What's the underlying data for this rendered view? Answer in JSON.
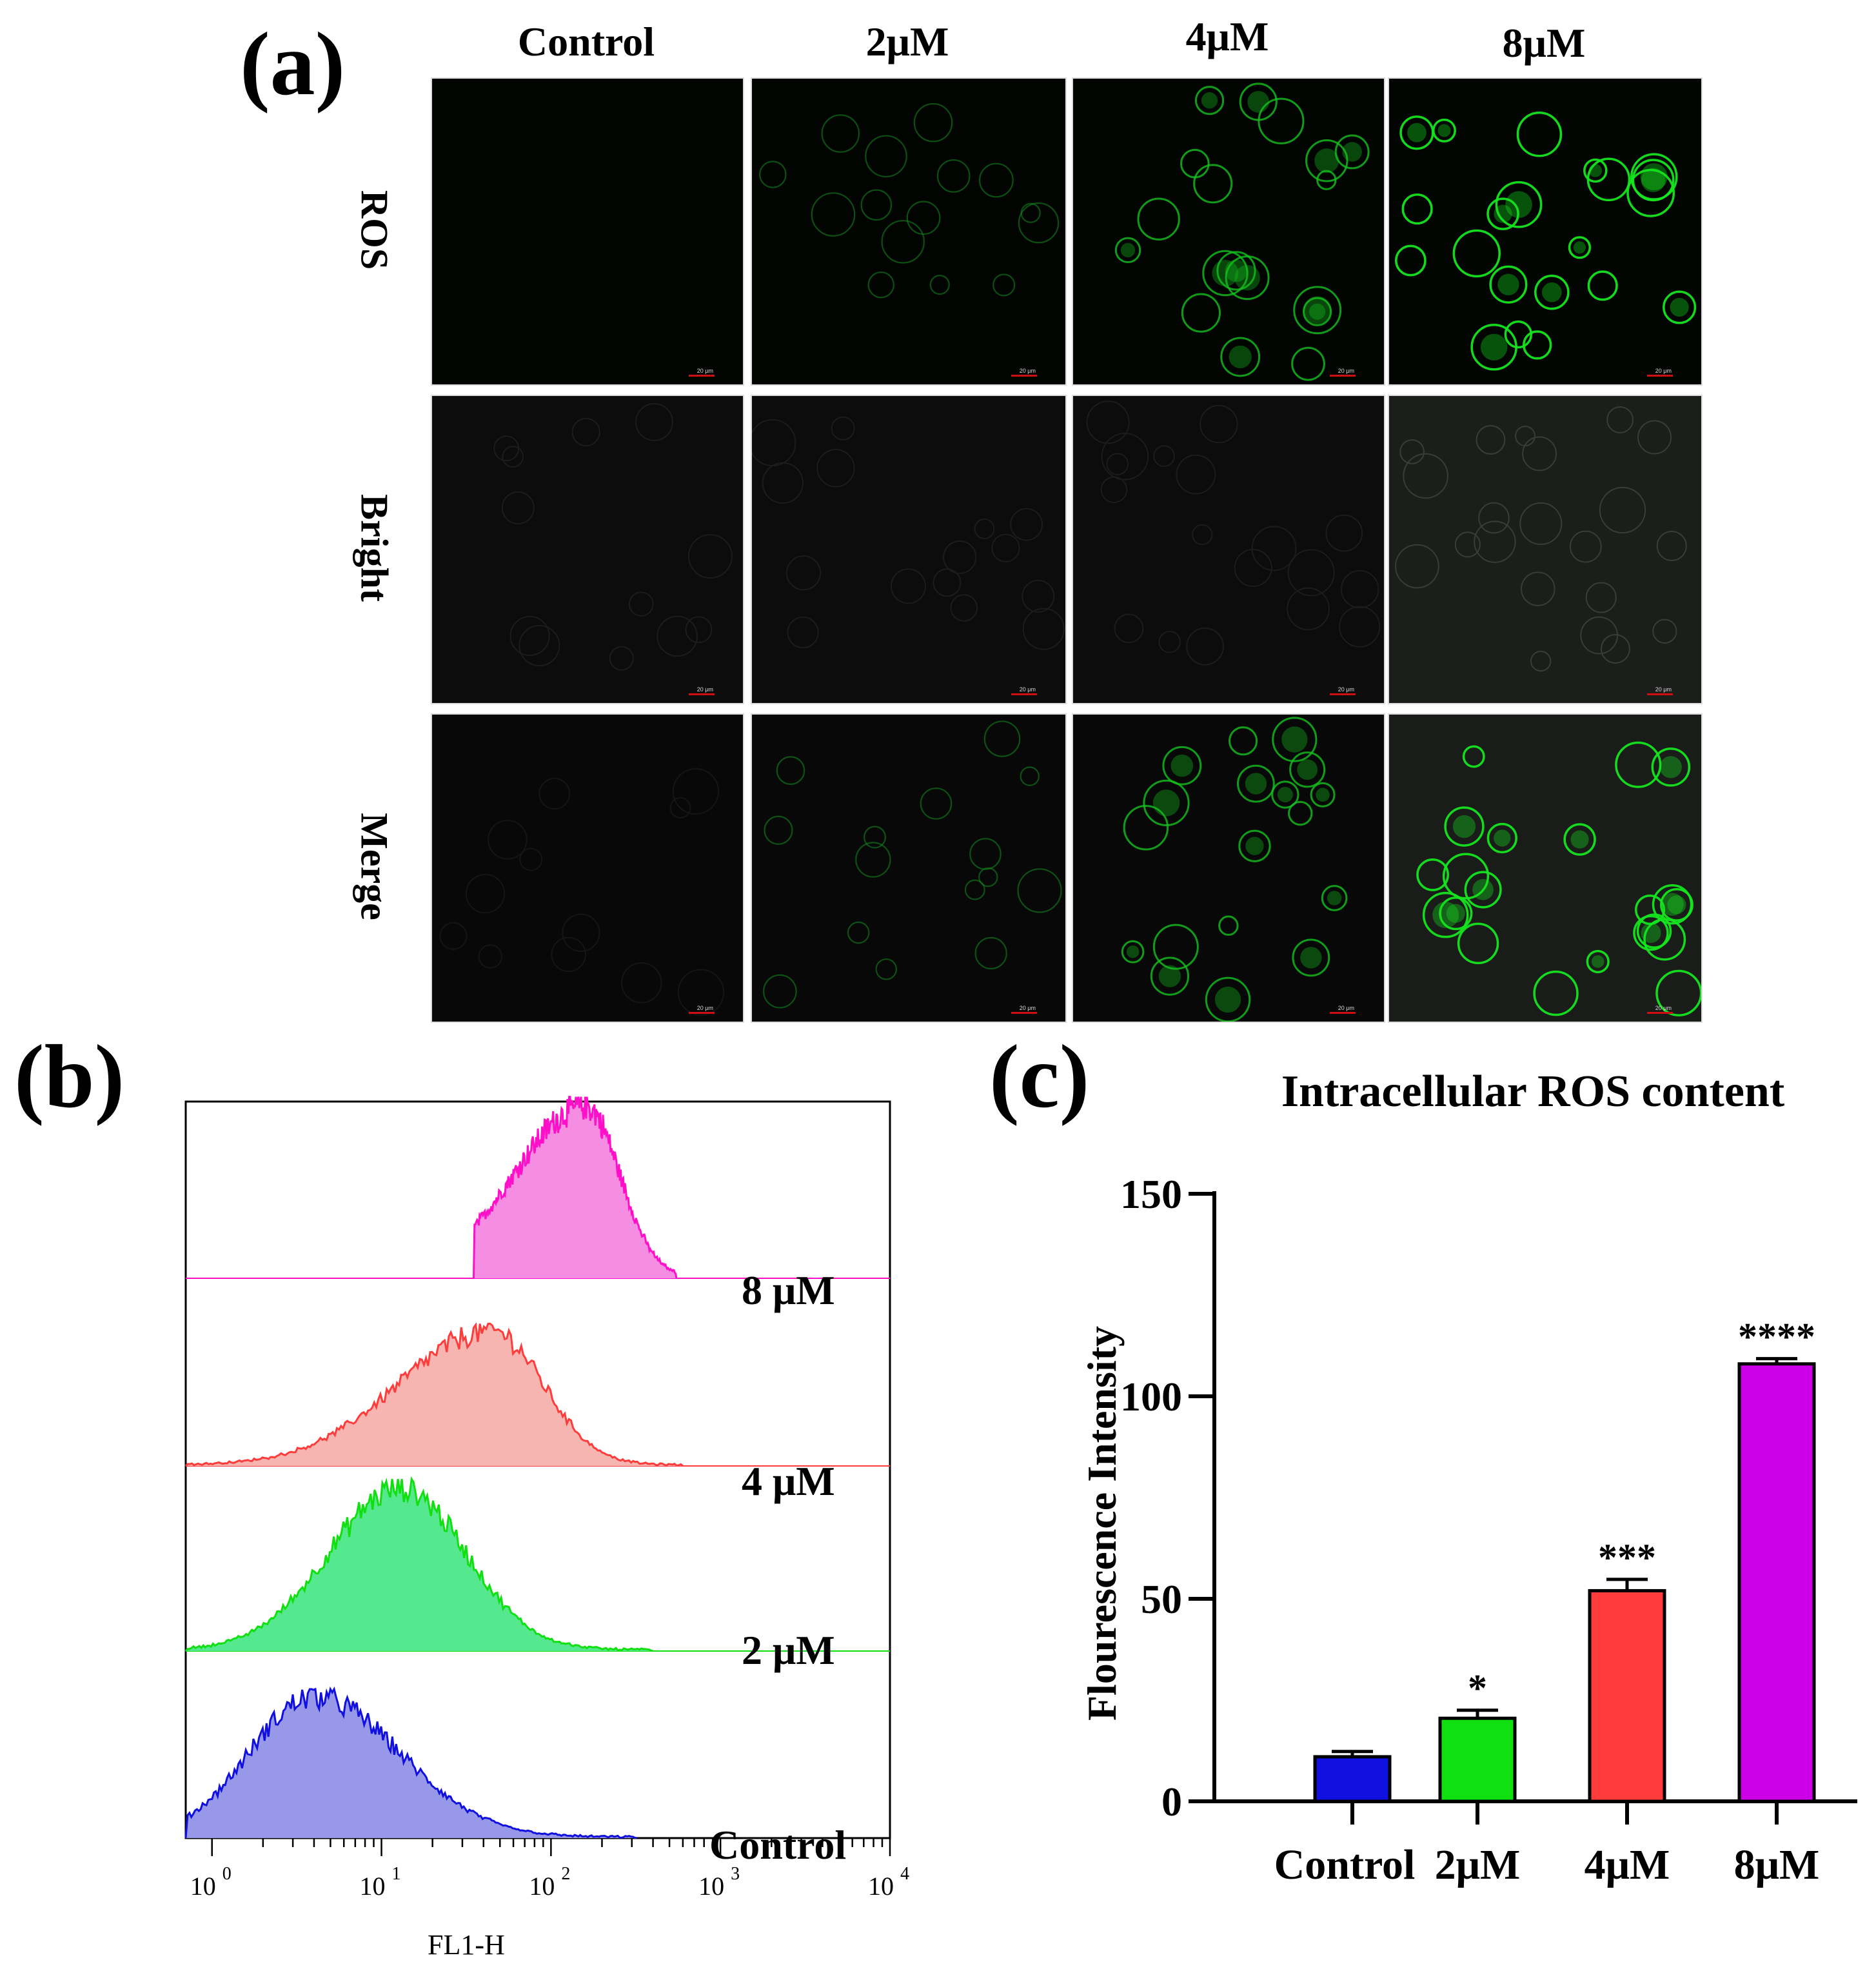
{
  "panels": {
    "a": "(a)",
    "b": "(b)",
    "c": "(c)"
  },
  "microscopy": {
    "columns": [
      "Control",
      "2μM",
      "4μM",
      "8μM"
    ],
    "rows": [
      "ROS",
      "Bright",
      "Merge"
    ],
    "scale_label": "20 μm"
  },
  "colors": {
    "control": "#1010e0",
    "c2": "#10e010",
    "c4": "#ff3c3c",
    "c8": "#cc00e6",
    "hist_control_fill": "#9898e8",
    "hist_2_fill": "#55e88f",
    "hist_4_fill": "#f6b5b0",
    "hist_8_fill": "#f58ee3",
    "hist_8_line": "#ff10c8"
  },
  "chart_data": [
    {
      "type": "area",
      "panel": "b",
      "xlabel": "FL1-H",
      "xscale": "log",
      "xlim": [
        0.7,
        10000
      ],
      "x_tick_labels": [
        "10",
        "10",
        "10",
        "10",
        "10"
      ],
      "x_tick_exponents": [
        "0",
        "1",
        "2",
        "3",
        "4"
      ],
      "series": [
        {
          "name": "8 μM",
          "peak_x": 160,
          "log_sigma_left": 0.42,
          "log_sigma_right": 0.2,
          "start_x": 35,
          "end_x": 550
        },
        {
          "name": "4 μM",
          "peak_x": 45,
          "log_sigma_left": 0.55,
          "log_sigma_right": 0.3,
          "start_x": 0.7,
          "end_x": 600
        },
        {
          "name": "2 μM",
          "peak_x": 13,
          "log_sigma_left": 0.42,
          "log_sigma_right": 0.38,
          "start_x": 0.7,
          "end_x": 400
        },
        {
          "name": "Control",
          "peak_x": 4,
          "log_sigma_left": 0.38,
          "log_sigma_right": 0.5,
          "start_x": 0.7,
          "end_x": 320
        }
      ]
    },
    {
      "type": "bar",
      "panel": "c",
      "title": "Intracellular ROS content",
      "ylabel": "Flourescence Intensity",
      "xlabel": "",
      "categories": [
        "Control",
        "2μM",
        "4μM",
        "8μM"
      ],
      "values": [
        11,
        20.5,
        52,
        108
      ],
      "errors": [
        1.3,
        2.0,
        2.8,
        1.3
      ],
      "significance": [
        "",
        "*",
        "***",
        "****"
      ],
      "ylim": [
        0,
        150
      ],
      "yticks": [
        0,
        50,
        100,
        150
      ]
    }
  ]
}
